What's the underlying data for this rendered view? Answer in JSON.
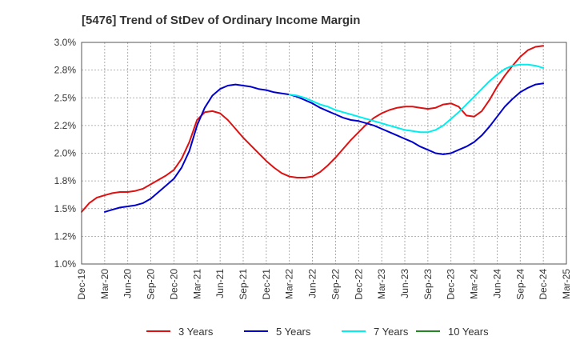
{
  "chart_data": {
    "type": "line",
    "title": "[5476]  Trend of StDev of Ordinary Income Margin",
    "xlabel": "",
    "ylabel": "",
    "x_tick_labels": [
      "Dec-19",
      "Mar-20",
      "Jun-20",
      "Sep-20",
      "Dec-20",
      "Mar-21",
      "Jun-21",
      "Sep-21",
      "Dec-21",
      "Mar-22",
      "Jun-22",
      "Sep-22",
      "Dec-22",
      "Mar-23",
      "Jun-23",
      "Sep-23",
      "Dec-23",
      "Mar-24",
      "Jun-24",
      "Sep-24",
      "Dec-24",
      "Mar-25"
    ],
    "y_tick_labels": [
      "1.0%",
      "1.2%",
      "1.5%",
      "1.8%",
      "2.0%",
      "2.2%",
      "2.5%",
      "2.8%",
      "3.0%"
    ],
    "ylim": [
      1.0,
      3.0
    ],
    "y_tick_values": [
      1.0,
      1.25,
      1.5,
      1.75,
      2.0,
      2.25,
      2.5,
      2.75,
      3.0
    ],
    "grid": true,
    "legend_position": "bottom",
    "series": [
      {
        "name": "3 Years",
        "color": "#dd1111",
        "values": [
          [
            "2019-12",
            1.47
          ],
          [
            "2020-01",
            1.55
          ],
          [
            "2020-02",
            1.6
          ],
          [
            "2020-03",
            1.62
          ],
          [
            "2020-04",
            1.64
          ],
          [
            "2020-05",
            1.65
          ],
          [
            "2020-06",
            1.65
          ],
          [
            "2020-07",
            1.66
          ],
          [
            "2020-08",
            1.68
          ],
          [
            "2020-09",
            1.72
          ],
          [
            "2020-10",
            1.76
          ],
          [
            "2020-11",
            1.8
          ],
          [
            "2020-12",
            1.85
          ],
          [
            "2021-01",
            1.95
          ],
          [
            "2021-02",
            2.1
          ],
          [
            "2021-03",
            2.3
          ],
          [
            "2021-04",
            2.37
          ],
          [
            "2021-05",
            2.38
          ],
          [
            "2021-06",
            2.36
          ],
          [
            "2021-07",
            2.3
          ],
          [
            "2021-08",
            2.22
          ],
          [
            "2021-09",
            2.14
          ],
          [
            "2021-10",
            2.07
          ],
          [
            "2021-11",
            2.0
          ],
          [
            "2021-12",
            1.93
          ],
          [
            "2022-01",
            1.87
          ],
          [
            "2022-02",
            1.82
          ],
          [
            "2022-03",
            1.79
          ],
          [
            "2022-04",
            1.78
          ],
          [
            "2022-05",
            1.78
          ],
          [
            "2022-06",
            1.79
          ],
          [
            "2022-07",
            1.83
          ],
          [
            "2022-08",
            1.89
          ],
          [
            "2022-09",
            1.96
          ],
          [
            "2022-10",
            2.04
          ],
          [
            "2022-11",
            2.12
          ],
          [
            "2022-12",
            2.19
          ],
          [
            "2023-01",
            2.26
          ],
          [
            "2023-02",
            2.32
          ],
          [
            "2023-03",
            2.36
          ],
          [
            "2023-04",
            2.39
          ],
          [
            "2023-05",
            2.41
          ],
          [
            "2023-06",
            2.42
          ],
          [
            "2023-07",
            2.42
          ],
          [
            "2023-08",
            2.41
          ],
          [
            "2023-09",
            2.4
          ],
          [
            "2023-10",
            2.41
          ],
          [
            "2023-11",
            2.44
          ],
          [
            "2023-12",
            2.45
          ],
          [
            "2024-01",
            2.42
          ],
          [
            "2024-02",
            2.34
          ],
          [
            "2024-03",
            2.33
          ],
          [
            "2024-04",
            2.38
          ],
          [
            "2024-05",
            2.48
          ],
          [
            "2024-06",
            2.6
          ],
          [
            "2024-07",
            2.7
          ],
          [
            "2024-08",
            2.79
          ],
          [
            "2024-09",
            2.87
          ],
          [
            "2024-10",
            2.93
          ],
          [
            "2024-11",
            2.96
          ],
          [
            "2024-12",
            2.97
          ]
        ]
      },
      {
        "name": "5 Years",
        "color": "#0000cc",
        "values": [
          [
            "2020-03",
            1.47
          ],
          [
            "2020-04",
            1.49
          ],
          [
            "2020-05",
            1.51
          ],
          [
            "2020-06",
            1.52
          ],
          [
            "2020-07",
            1.53
          ],
          [
            "2020-08",
            1.55
          ],
          [
            "2020-09",
            1.59
          ],
          [
            "2020-10",
            1.65
          ],
          [
            "2020-11",
            1.71
          ],
          [
            "2020-12",
            1.77
          ],
          [
            "2021-01",
            1.87
          ],
          [
            "2021-02",
            2.02
          ],
          [
            "2021-03",
            2.25
          ],
          [
            "2021-04",
            2.41
          ],
          [
            "2021-05",
            2.52
          ],
          [
            "2021-06",
            2.58
          ],
          [
            "2021-07",
            2.61
          ],
          [
            "2021-08",
            2.62
          ],
          [
            "2021-09",
            2.61
          ],
          [
            "2021-10",
            2.6
          ],
          [
            "2021-11",
            2.58
          ],
          [
            "2021-12",
            2.57
          ],
          [
            "2022-01",
            2.55
          ],
          [
            "2022-02",
            2.54
          ],
          [
            "2022-03",
            2.53
          ],
          [
            "2022-04",
            2.51
          ],
          [
            "2022-05",
            2.48
          ],
          [
            "2022-06",
            2.45
          ],
          [
            "2022-07",
            2.41
          ],
          [
            "2022-08",
            2.38
          ],
          [
            "2022-09",
            2.35
          ],
          [
            "2022-10",
            2.32
          ],
          [
            "2022-11",
            2.3
          ],
          [
            "2022-12",
            2.29
          ],
          [
            "2023-01",
            2.27
          ],
          [
            "2023-02",
            2.25
          ],
          [
            "2023-03",
            2.22
          ],
          [
            "2023-04",
            2.19
          ],
          [
            "2023-05",
            2.16
          ],
          [
            "2023-06",
            2.13
          ],
          [
            "2023-07",
            2.1
          ],
          [
            "2023-08",
            2.06
          ],
          [
            "2023-09",
            2.03
          ],
          [
            "2023-10",
            2.0
          ],
          [
            "2023-11",
            1.99
          ],
          [
            "2023-12",
            2.0
          ],
          [
            "2024-01",
            2.03
          ],
          [
            "2024-02",
            2.06
          ],
          [
            "2024-03",
            2.1
          ],
          [
            "2024-04",
            2.16
          ],
          [
            "2024-05",
            2.24
          ],
          [
            "2024-06",
            2.33
          ],
          [
            "2024-07",
            2.42
          ],
          [
            "2024-08",
            2.49
          ],
          [
            "2024-09",
            2.55
          ],
          [
            "2024-10",
            2.59
          ],
          [
            "2024-11",
            2.62
          ],
          [
            "2024-12",
            2.63
          ]
        ]
      },
      {
        "name": "7 Years",
        "color": "#00eeee",
        "values": [
          [
            "2022-03",
            2.53
          ],
          [
            "2022-04",
            2.52
          ],
          [
            "2022-05",
            2.5
          ],
          [
            "2022-06",
            2.47
          ],
          [
            "2022-07",
            2.44
          ],
          [
            "2022-08",
            2.42
          ],
          [
            "2022-09",
            2.39
          ],
          [
            "2022-10",
            2.37
          ],
          [
            "2022-11",
            2.35
          ],
          [
            "2022-12",
            2.33
          ],
          [
            "2023-01",
            2.31
          ],
          [
            "2023-02",
            2.29
          ],
          [
            "2023-03",
            2.27
          ],
          [
            "2023-04",
            2.25
          ],
          [
            "2023-05",
            2.23
          ],
          [
            "2023-06",
            2.21
          ],
          [
            "2023-07",
            2.2
          ],
          [
            "2023-08",
            2.19
          ],
          [
            "2023-09",
            2.19
          ],
          [
            "2023-10",
            2.21
          ],
          [
            "2023-11",
            2.25
          ],
          [
            "2023-12",
            2.31
          ],
          [
            "2024-01",
            2.37
          ],
          [
            "2024-02",
            2.44
          ],
          [
            "2024-03",
            2.51
          ],
          [
            "2024-04",
            2.58
          ],
          [
            "2024-05",
            2.65
          ],
          [
            "2024-06",
            2.71
          ],
          [
            "2024-07",
            2.76
          ],
          [
            "2024-08",
            2.79
          ],
          [
            "2024-09",
            2.8
          ],
          [
            "2024-10",
            2.8
          ],
          [
            "2024-11",
            2.79
          ],
          [
            "2024-12",
            2.77
          ]
        ]
      },
      {
        "name": "10 Years",
        "color": "#228822",
        "values": []
      }
    ]
  }
}
